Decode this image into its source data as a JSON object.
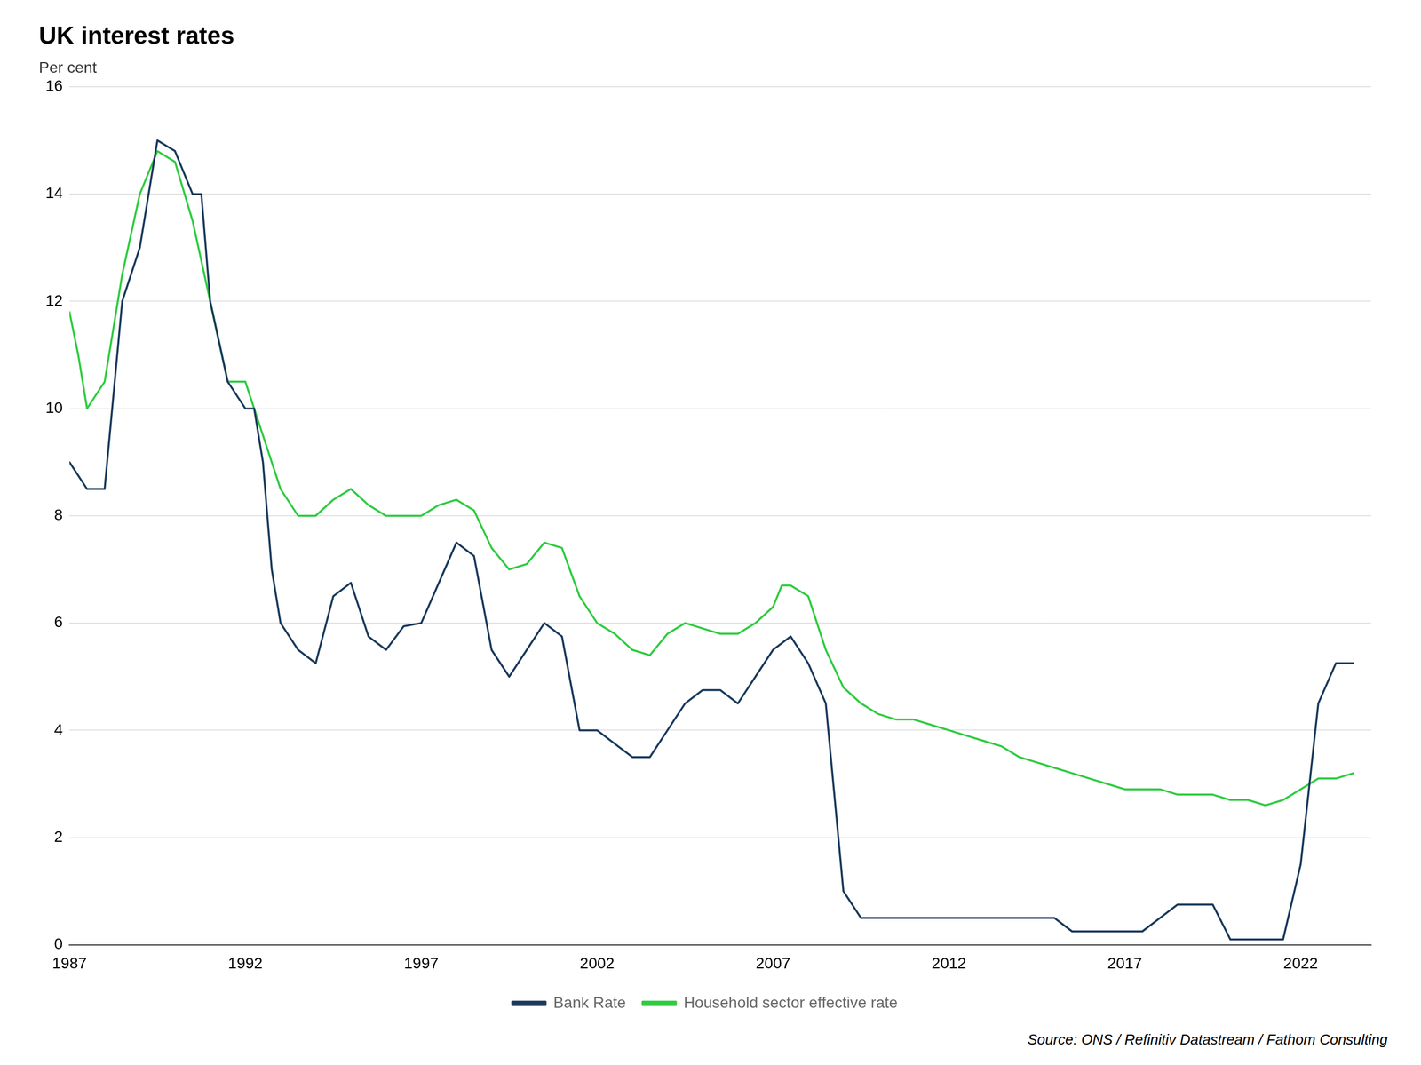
{
  "chart_data": {
    "type": "line",
    "title": "UK interest rates",
    "ylabel": "Per cent",
    "source": "Source: ONS / Refinitiv Datastream / Fathom Consulting",
    "xlim": [
      1987,
      2024
    ],
    "xticks": [
      1987,
      1992,
      1997,
      2002,
      2007,
      2012,
      2017,
      2022
    ],
    "ylim": [
      0,
      16
    ],
    "yticks": [
      0,
      2,
      4,
      6,
      8,
      10,
      12,
      14,
      16
    ],
    "grid": "y",
    "legend": "bottom",
    "series": [
      {
        "name": "Bank Rate",
        "color": "#1a3a5c",
        "x": [
          1987.0,
          1987.5,
          1988.0,
          1988.5,
          1989.0,
          1989.5,
          1990.0,
          1990.5,
          1990.75,
          1991.0,
          1991.5,
          1992.0,
          1992.25,
          1992.5,
          1992.75,
          1993.0,
          1993.5,
          1994.0,
          1994.5,
          1995.0,
          1995.5,
          1996.0,
          1996.5,
          1997.0,
          1997.5,
          1998.0,
          1998.5,
          1999.0,
          1999.5,
          2000.0,
          2000.5,
          2001.0,
          2001.5,
          2002.0,
          2002.5,
          2003.0,
          2003.5,
          2004.0,
          2004.5,
          2005.0,
          2005.5,
          2006.0,
          2006.5,
          2007.0,
          2007.5,
          2008.0,
          2008.5,
          2009.0,
          2009.5,
          2010.0,
          2010.5,
          2011.0,
          2011.5,
          2012.0,
          2012.5,
          2013.0,
          2013.5,
          2014.0,
          2014.5,
          2015.0,
          2015.5,
          2016.0,
          2016.5,
          2017.0,
          2017.5,
          2018.0,
          2018.5,
          2019.0,
          2019.5,
          2020.0,
          2020.5,
          2021.0,
          2021.5,
          2022.0,
          2022.5,
          2023.0,
          2023.5
        ],
        "values": [
          9.0,
          8.5,
          8.5,
          12.0,
          13.0,
          15.0,
          14.8,
          14.0,
          14.0,
          12.0,
          10.5,
          10.0,
          10.0,
          9.0,
          7.0,
          6.0,
          5.5,
          5.25,
          6.5,
          6.75,
          5.75,
          5.5,
          5.94,
          6.0,
          6.75,
          7.5,
          7.25,
          5.5,
          5.0,
          5.5,
          6.0,
          5.75,
          4.0,
          4.0,
          3.75,
          3.5,
          3.5,
          4.0,
          4.5,
          4.75,
          4.75,
          4.5,
          5.0,
          5.5,
          5.75,
          5.25,
          4.5,
          1.0,
          0.5,
          0.5,
          0.5,
          0.5,
          0.5,
          0.5,
          0.5,
          0.5,
          0.5,
          0.5,
          0.5,
          0.5,
          0.25,
          0.25,
          0.25,
          0.25,
          0.25,
          0.5,
          0.75,
          0.75,
          0.75,
          0.1,
          0.1,
          0.1,
          0.1,
          1.5,
          4.5,
          5.25,
          5.25
        ]
      },
      {
        "name": "Household sector effective rate",
        "color": "#2ecc40",
        "x": [
          1987.0,
          1987.25,
          1987.5,
          1988.0,
          1988.5,
          1989.0,
          1989.5,
          1990.0,
          1990.5,
          1991.0,
          1991.5,
          1992.0,
          1992.5,
          1993.0,
          1993.5,
          1994.0,
          1994.5,
          1995.0,
          1995.5,
          1996.0,
          1996.5,
          1997.0,
          1997.5,
          1998.0,
          1998.5,
          1999.0,
          1999.5,
          2000.0,
          2000.5,
          2001.0,
          2001.5,
          2002.0,
          2002.5,
          2003.0,
          2003.5,
          2004.0,
          2004.5,
          2005.0,
          2005.5,
          2006.0,
          2006.5,
          2007.0,
          2007.25,
          2007.5,
          2008.0,
          2008.5,
          2009.0,
          2009.5,
          2010.0,
          2010.5,
          2011.0,
          2011.5,
          2012.0,
          2012.5,
          2013.0,
          2013.5,
          2014.0,
          2014.5,
          2015.0,
          2015.5,
          2016.0,
          2016.5,
          2017.0,
          2017.5,
          2018.0,
          2018.5,
          2019.0,
          2019.5,
          2020.0,
          2020.5,
          2021.0,
          2021.5,
          2022.0,
          2022.5,
          2023.0,
          2023.5
        ],
        "values": [
          11.8,
          11.0,
          10.0,
          10.5,
          12.5,
          14.0,
          14.8,
          14.6,
          13.5,
          12.0,
          10.5,
          10.5,
          9.5,
          8.5,
          8.0,
          8.0,
          8.3,
          8.5,
          8.2,
          8.0,
          8.0,
          8.0,
          8.2,
          8.3,
          8.1,
          7.4,
          7.0,
          7.1,
          7.5,
          7.4,
          6.5,
          6.0,
          5.8,
          5.5,
          5.4,
          5.8,
          6.0,
          5.9,
          5.8,
          5.8,
          6.0,
          6.3,
          6.7,
          6.7,
          6.5,
          5.5,
          4.8,
          4.5,
          4.3,
          4.2,
          4.2,
          4.1,
          4.0,
          3.9,
          3.8,
          3.7,
          3.5,
          3.4,
          3.3,
          3.2,
          3.1,
          3.0,
          2.9,
          2.9,
          2.9,
          2.8,
          2.8,
          2.8,
          2.7,
          2.7,
          2.6,
          2.7,
          2.9,
          3.1,
          3.1,
          3.2
        ]
      }
    ]
  }
}
